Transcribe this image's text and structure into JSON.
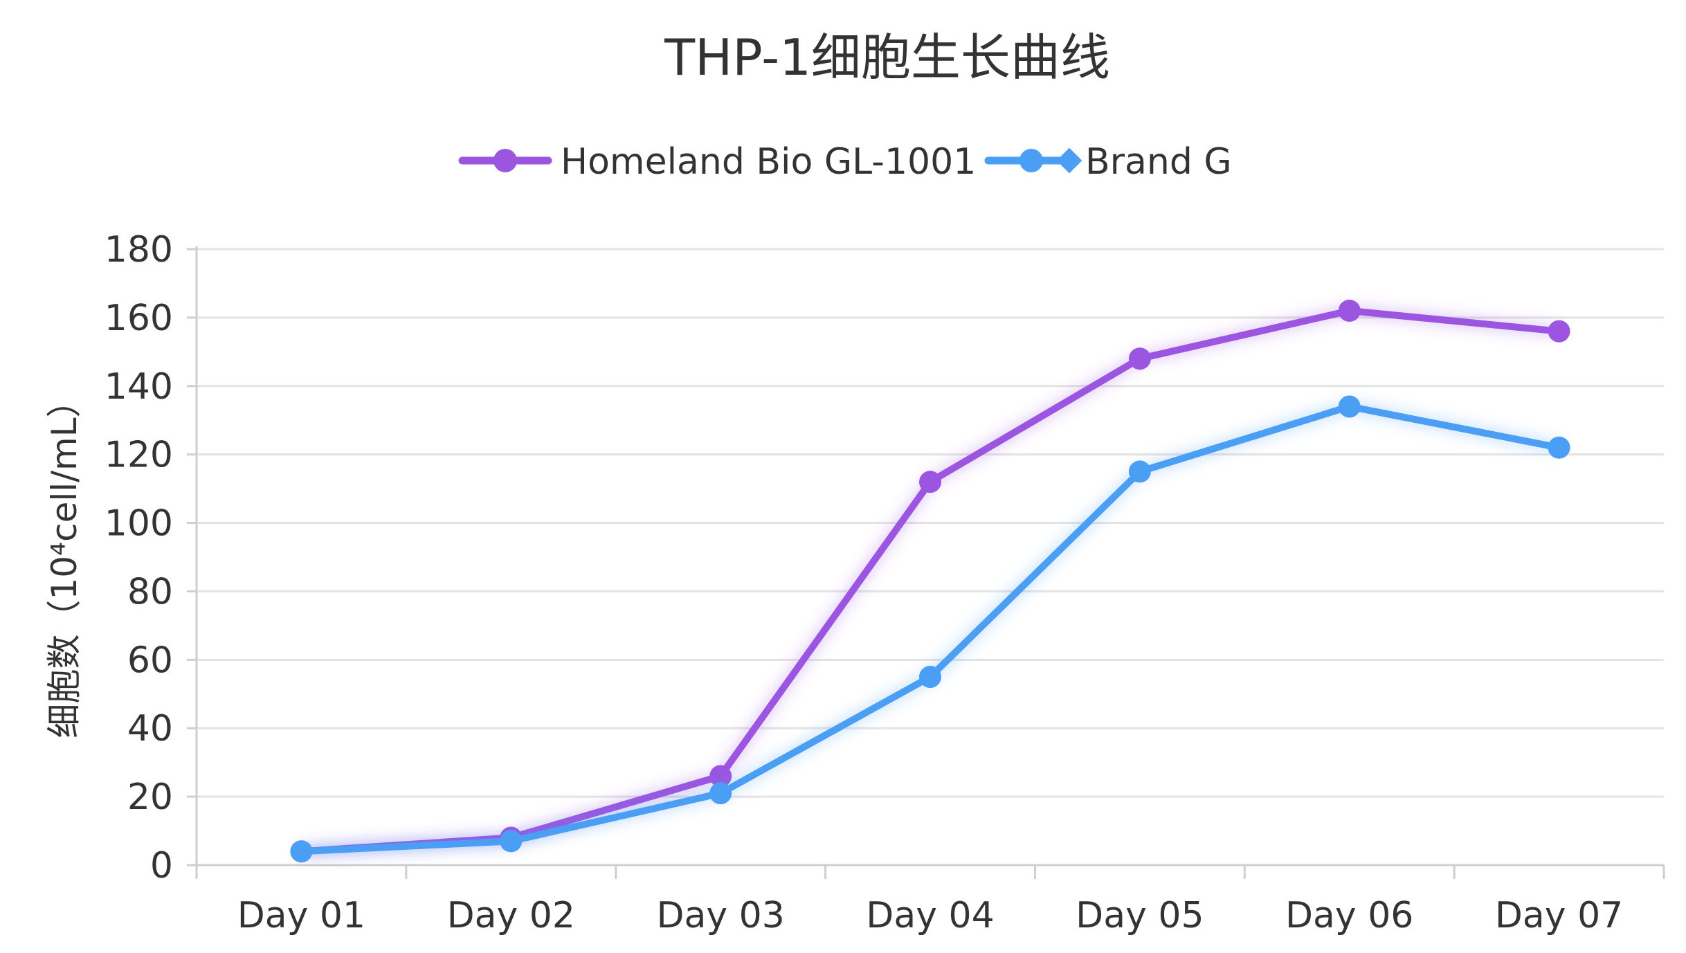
{
  "chart_data": {
    "type": "line",
    "title": "THP-1细胞生长曲线",
    "xlabel": "",
    "ylabel": "细胞数（10⁴cell/mL）",
    "categories": [
      "Day 01",
      "Day 02",
      "Day 03",
      "Day 04",
      "Day 05",
      "Day 06",
      "Day 07"
    ],
    "ylim": [
      0,
      180
    ],
    "yticks": [
      0,
      20,
      40,
      60,
      80,
      100,
      120,
      140,
      160,
      180
    ],
    "grid": true,
    "legend_position": "top-center",
    "series": [
      {
        "name": "Homeland Bio GL-1001",
        "color": "#9b55e0",
        "marker": "circle",
        "values": [
          4,
          8,
          26,
          112,
          148,
          162,
          156
        ]
      },
      {
        "name": "Brand G",
        "color": "#4a9ff5",
        "marker": "circle",
        "values": [
          4,
          7,
          21,
          55,
          115,
          134,
          122
        ]
      }
    ]
  }
}
